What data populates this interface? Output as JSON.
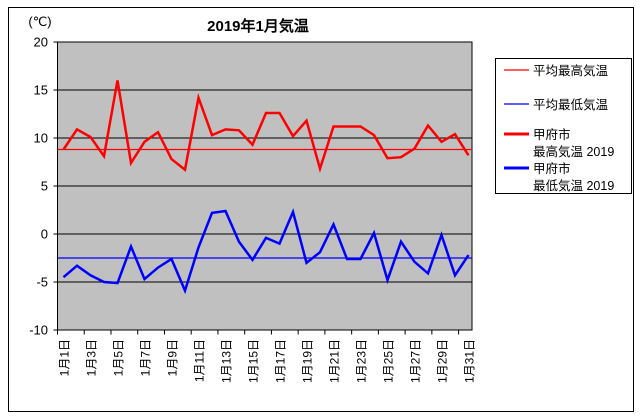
{
  "title": "2019年1月気温",
  "y_axis": {
    "unit_label": "(℃)",
    "tick_labels": [
      "20",
      "15",
      "10",
      "5",
      "0",
      "-5",
      "-10"
    ],
    "tick_values": [
      20,
      15,
      10,
      5,
      0,
      -5,
      -10
    ],
    "min": -10,
    "max": 20
  },
  "x_axis": {
    "tick_labels": [
      "1月1日",
      "1月3日",
      "1月5日",
      "1月7日",
      "1月9日",
      "1月11日",
      "1月13日",
      "1月15日",
      "1月17日",
      "1月19日",
      "1月21日",
      "1月23日",
      "1月25日",
      "1月27日",
      "1月29日",
      "1月31日"
    ],
    "label_days": [
      1,
      3,
      5,
      7,
      9,
      11,
      13,
      15,
      17,
      19,
      21,
      23,
      25,
      27,
      29,
      31
    ]
  },
  "legend": {
    "items": [
      {
        "lines": [
          "平均最高気温"
        ],
        "color": "#ff0000",
        "style": "thin",
        "icon": "line-sample"
      },
      {
        "lines": [
          "平均最低気温"
        ],
        "color": "#0000ff",
        "style": "thin",
        "icon": "line-sample"
      },
      {
        "lines": [
          "甲府市",
          "最高気温 2019"
        ],
        "color": "#ff0000",
        "style": "thick",
        "icon": "line-sample"
      },
      {
        "lines": [
          "甲府市",
          "最低気温 2019"
        ],
        "color": "#0000ff",
        "style": "thick",
        "icon": "line-sample"
      }
    ]
  },
  "colors": {
    "max_temp": "#ff0000",
    "min_temp": "#0000ff",
    "plot_background": "#c0c0c0",
    "grid": "#000000",
    "border": "#000000",
    "page_background": "#ffffff"
  },
  "chart_data": {
    "type": "line",
    "title": "2019年1月気温",
    "ylabel": "(℃)",
    "ylim": [
      -10,
      20
    ],
    "y_ticks": [
      20,
      15,
      10,
      5,
      0,
      -5,
      -10
    ],
    "x_tick_labels": [
      "1月1日",
      "1月3日",
      "1月5日",
      "1月7日",
      "1月9日",
      "1月11日",
      "1月13日",
      "1月15日",
      "1月17日",
      "1月19日",
      "1月21日",
      "1月23日",
      "1月25日",
      "1月27日",
      "1月29日",
      "1月31日"
    ],
    "days": [
      1,
      2,
      3,
      4,
      5,
      6,
      7,
      8,
      9,
      10,
      11,
      12,
      13,
      14,
      15,
      16,
      17,
      18,
      19,
      20,
      21,
      22,
      23,
      24,
      25,
      26,
      27,
      28,
      29,
      30,
      31
    ],
    "grid": true,
    "plot_bg": "#c0c0c0",
    "legend_position": "right",
    "series": [
      {
        "name": "平均最高気温",
        "kind": "constant",
        "value": 8.8,
        "color": "#ff0000",
        "line_width": "thin"
      },
      {
        "name": "平均最低気温",
        "kind": "constant",
        "value": -2.5,
        "color": "#0000ff",
        "line_width": "thin"
      },
      {
        "name": "甲府市 最高気温 2019",
        "kind": "daily",
        "color": "#ff0000",
        "line_width": "thick",
        "values": [
          8.8,
          10.9,
          10.1,
          8.1,
          16.0,
          7.4,
          9.6,
          10.6,
          7.8,
          6.7,
          14.2,
          10.3,
          10.9,
          10.8,
          9.3,
          12.6,
          12.6,
          10.2,
          11.8,
          6.8,
          11.2,
          11.2,
          11.2,
          10.3,
          7.9,
          8.0,
          8.9,
          11.3,
          9.6,
          10.4,
          8.2
        ]
      },
      {
        "name": "甲府市 最低気温 2019",
        "kind": "daily",
        "color": "#0000ff",
        "line_width": "thick",
        "values": [
          -4.5,
          -3.3,
          -4.3,
          -5.0,
          -5.1,
          -1.3,
          -4.7,
          -3.5,
          -2.6,
          -5.9,
          -1.4,
          2.2,
          2.4,
          -0.8,
          -2.7,
          -0.4,
          -1.0,
          2.3,
          -3.0,
          -1.9,
          1.0,
          -2.6,
          -2.6,
          0.1,
          -4.8,
          -0.8,
          -2.9,
          -4.1,
          -0.1,
          -4.3,
          -2.2
        ]
      }
    ]
  }
}
